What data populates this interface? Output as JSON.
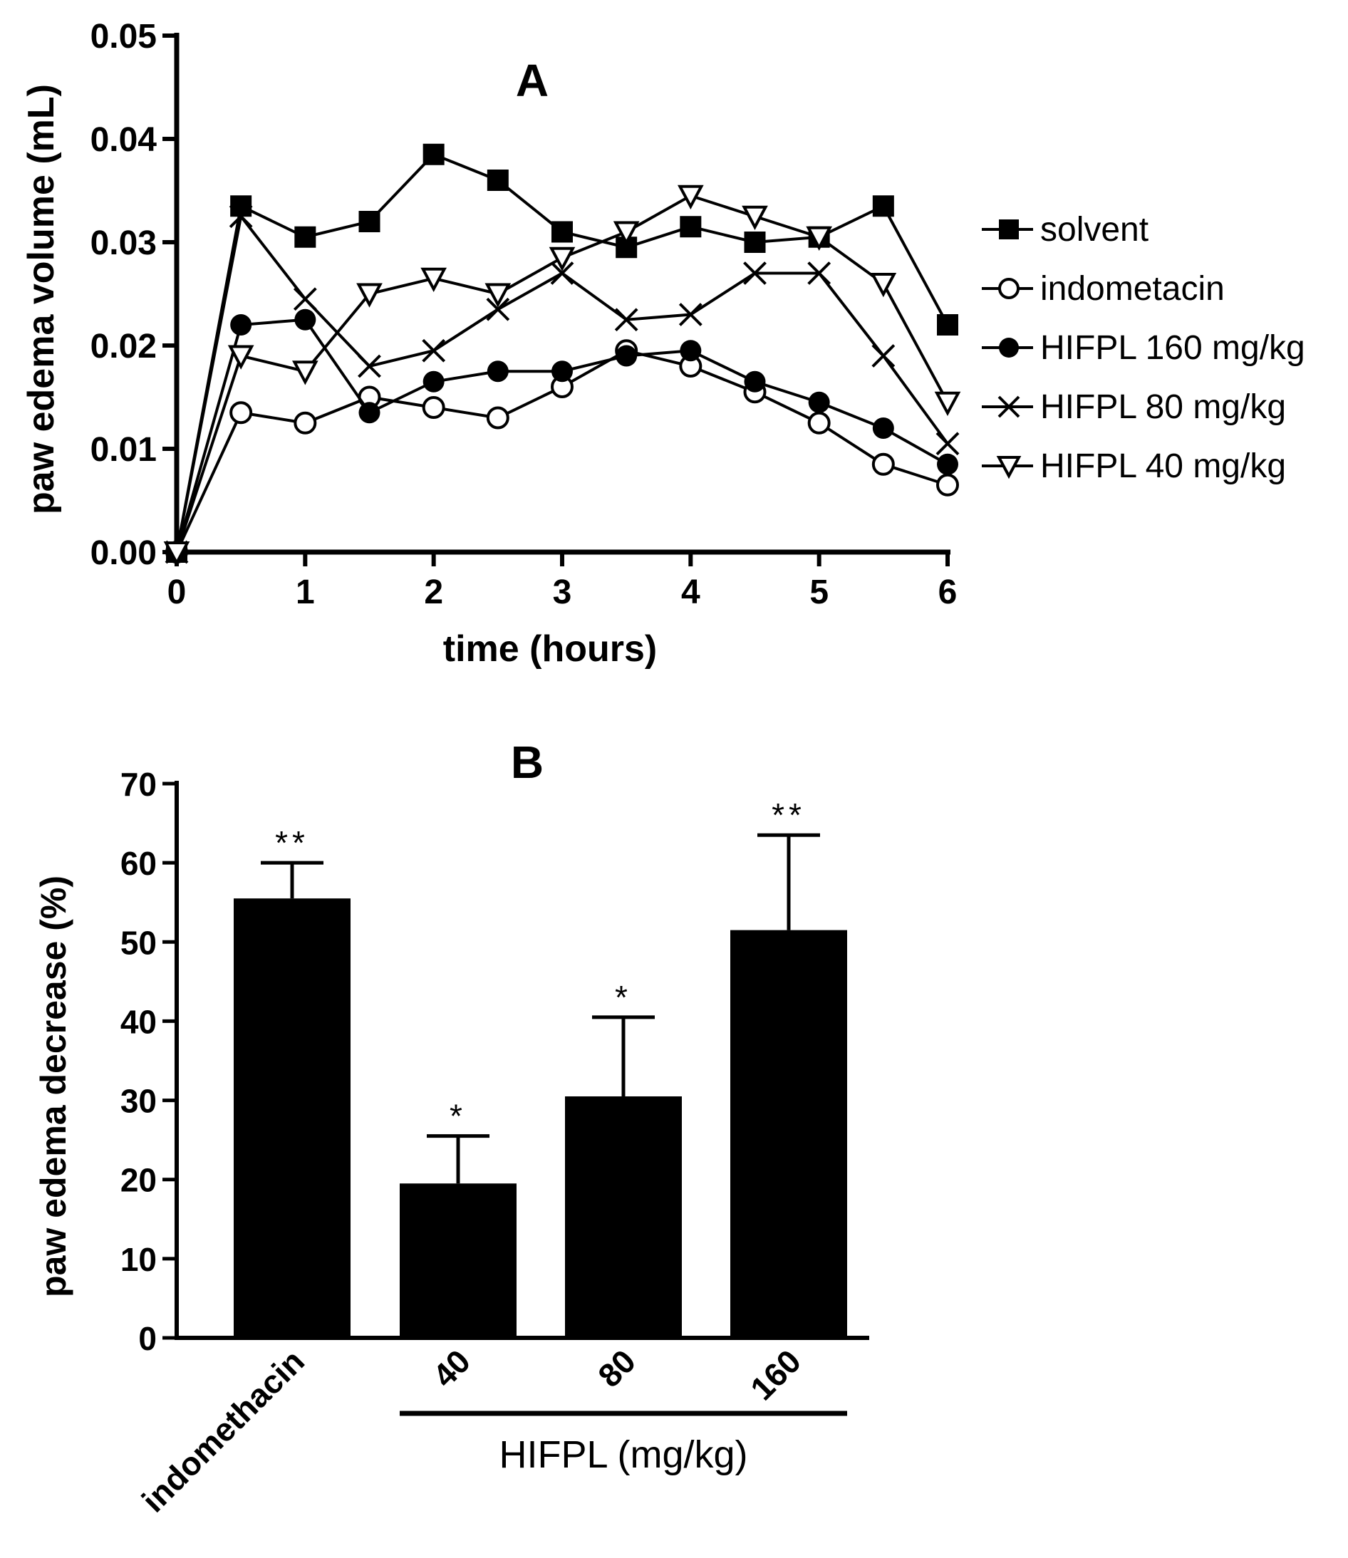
{
  "chart_data": [
    {
      "panel": "A",
      "type": "line",
      "title": "A",
      "xlabel": "time (hours)",
      "ylabel": "paw edema volume (mL)",
      "xlim": [
        0,
        6
      ],
      "ylim": [
        0,
        0.05
      ],
      "x_ticks": [
        "0",
        "1",
        "2",
        "3",
        "4",
        "5",
        "6"
      ],
      "y_ticks": [
        "0.00",
        "0.01",
        "0.02",
        "0.03",
        "0.04",
        "0.05"
      ],
      "legend_position": "right",
      "grid": false,
      "x": [
        0,
        0.5,
        1,
        1.5,
        2,
        2.5,
        3,
        3.5,
        4,
        4.5,
        5,
        5.5,
        6
      ],
      "series": [
        {
          "name": "solvent",
          "marker": "square-filled",
          "values": [
            0,
            0.0335,
            0.0305,
            0.032,
            0.0385,
            0.036,
            0.031,
            0.0295,
            0.0315,
            0.03,
            0.0305,
            0.0335,
            0.022
          ]
        },
        {
          "name": "indometacin",
          "marker": "circle-open",
          "values": [
            0,
            0.0135,
            0.0125,
            0.015,
            0.014,
            0.013,
            0.016,
            0.0195,
            0.018,
            0.0155,
            0.0125,
            0.0085,
            0.0065
          ]
        },
        {
          "name": "HIFPL 160 mg/kg",
          "marker": "circle-filled",
          "values": [
            0,
            0.022,
            0.0225,
            0.0135,
            0.0165,
            0.0175,
            0.0175,
            0.019,
            0.0195,
            0.0165,
            0.0145,
            0.012,
            0.0085
          ]
        },
        {
          "name": "HIFPL 80 mg/kg",
          "marker": "cross",
          "values": [
            0,
            0.0325,
            0.0245,
            0.018,
            0.0195,
            0.0235,
            0.027,
            0.0225,
            0.023,
            0.027,
            0.027,
            0.019,
            0.0105
          ]
        },
        {
          "name": "HIFPL 40 mg/kg",
          "marker": "triangle-down-open",
          "values": [
            0,
            0.019,
            0.0175,
            0.025,
            0.0265,
            0.025,
            0.0285,
            0.031,
            0.0345,
            0.0325,
            0.0305,
            0.026,
            0.0145
          ]
        }
      ]
    },
    {
      "panel": "B",
      "type": "bar",
      "title": "B",
      "ylabel": "paw edema decrease (%)",
      "xlabel": "HIFPL (mg/kg)",
      "ylim": [
        0,
        70
      ],
      "y_ticks": [
        "0",
        "10",
        "20",
        "30",
        "40",
        "50",
        "60",
        "70"
      ],
      "grid": false,
      "categories": [
        "indomethacin",
        "40",
        "80",
        "160"
      ],
      "values": [
        55.5,
        19.5,
        30.5,
        51.5
      ],
      "errors": [
        4.5,
        6.0,
        10.0,
        12.0
      ],
      "significance": [
        "**",
        "*",
        "*",
        "**"
      ],
      "group_bracket": {
        "label": "HIFPL (mg/kg)",
        "categories": [
          "40",
          "80",
          "160"
        ]
      }
    }
  ]
}
